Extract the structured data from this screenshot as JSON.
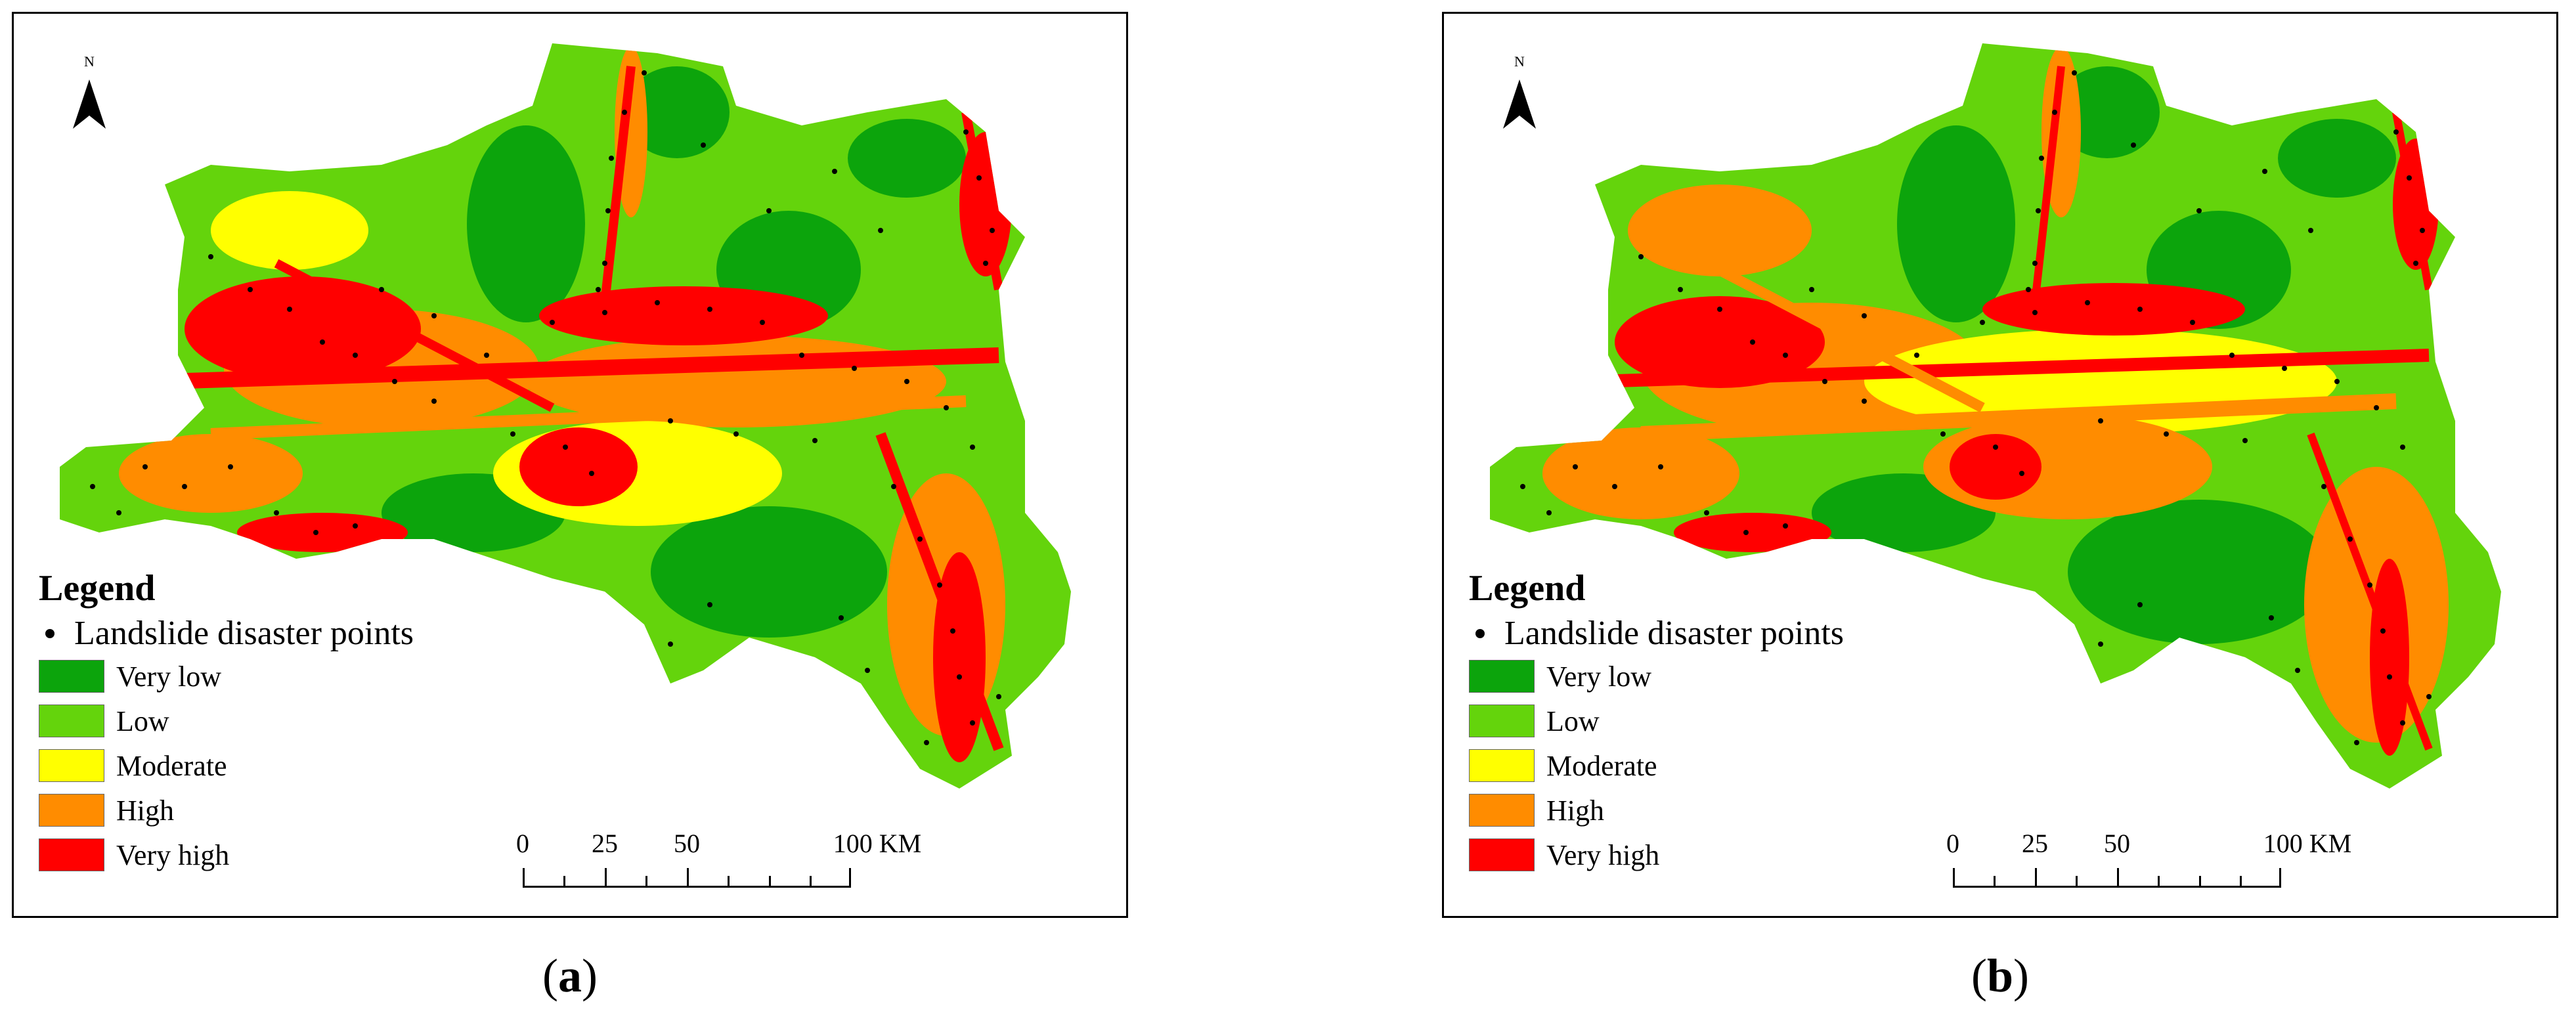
{
  "figure": {
    "panels": [
      {
        "id": "a",
        "caption_letter": "a",
        "north_label": "N",
        "legend": {
          "title": "Legend",
          "point_label": "Landslide disaster points",
          "classes": [
            {
              "label": "Very low",
              "color": "#0ca40c"
            },
            {
              "label": "Low",
              "color": "#64d40c"
            },
            {
              "label": "Moderate",
              "color": "#ffff00"
            },
            {
              "label": "High",
              "color": "#ff8c00"
            },
            {
              "label": "Very high",
              "color": "#ff0000"
            }
          ]
        },
        "scalebar": {
          "ticks": [
            "0",
            "25",
            "50",
            "100 KM"
          ]
        }
      },
      {
        "id": "b",
        "caption_letter": "b",
        "north_label": "N",
        "legend": {
          "title": "Legend",
          "point_label": "Landslide disaster points",
          "classes": [
            {
              "label": "Very low",
              "color": "#0ca40c"
            },
            {
              "label": "Low",
              "color": "#64d40c"
            },
            {
              "label": "Moderate",
              "color": "#ffff00"
            },
            {
              "label": "High",
              "color": "#ff8c00"
            },
            {
              "label": "Very high",
              "color": "#ff0000"
            }
          ]
        },
        "scalebar": {
          "ticks": [
            "0",
            "25",
            "50",
            "100 KM"
          ]
        }
      }
    ]
  }
}
